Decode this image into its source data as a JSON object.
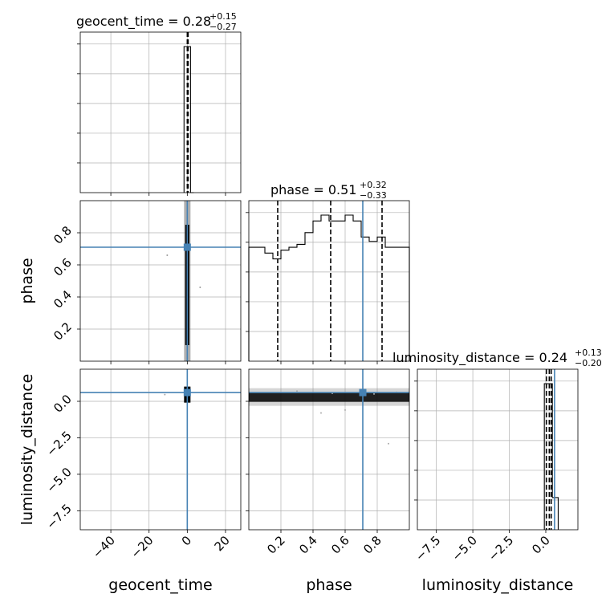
{
  "figure": {
    "titles": {
      "geocent_time": {
        "prefix": "geocent_time = 0.28",
        "sup": "+0.15",
        "sub": "−0.27"
      },
      "phase": {
        "prefix": "phase = 0.51",
        "sup": "+0.32",
        "sub": "−0.33"
      },
      "luminosity_distance": {
        "prefix": "luminosity_distance = 0.24",
        "sup": "+0.13",
        "sub": "−0.20"
      }
    },
    "axis_labels": {
      "geocent_time": "geocent_time",
      "phase": "phase",
      "luminosity_distance": "luminosity_distance"
    }
  },
  "chart_data": {
    "type": "corner",
    "parameters": [
      "geocent_time",
      "phase",
      "luminosity_distance"
    ],
    "ranges": {
      "geocent_time": [
        -56,
        28
      ],
      "phase": [
        0.0,
        1.0
      ],
      "luminosity_distance": [
        -8.8,
        2.2
      ]
    },
    "ticks": {
      "geocent_time": {
        "values": [
          -40,
          -20,
          0,
          20
        ],
        "labels": [
          "−40",
          "−20",
          "0",
          "20"
        ]
      },
      "phase": {
        "values": [
          0.2,
          0.4,
          0.6,
          0.8
        ],
        "labels": [
          "0.2",
          "0.4",
          "0.6",
          "0.8"
        ]
      },
      "luminosity_distance": {
        "values": [
          -7.5,
          -5.0,
          -2.5,
          0.0
        ],
        "labels": [
          "−7.5",
          "−5.0",
          "−2.5",
          "0.0"
        ]
      }
    },
    "truths": {
      "geocent_time": 0.0,
      "phase": 0.71,
      "luminosity_distance": 0.6
    },
    "quantiles": {
      "geocent_time": [
        0.01,
        0.28,
        0.43
      ],
      "phase": [
        0.18,
        0.51,
        0.83
      ],
      "luminosity_distance": [
        0.04,
        0.24,
        0.37
      ]
    },
    "histograms": {
      "geocent_time": {
        "edges": [
          -1.7,
          0.0,
          1.7,
          3.4
        ],
        "counts": [
          1.0,
          1.0,
          0.0
        ]
      },
      "phase": {
        "edges": [
          0.0,
          0.05,
          0.1,
          0.15,
          0.2,
          0.25,
          0.3,
          0.35,
          0.4,
          0.45,
          0.5,
          0.55,
          0.6,
          0.65,
          0.7,
          0.75,
          0.8,
          0.85,
          0.9,
          0.95,
          1.0
        ],
        "counts": [
          0.78,
          0.78,
          0.74,
          0.7,
          0.76,
          0.78,
          0.8,
          0.88,
          0.96,
          1.0,
          0.96,
          0.96,
          1.0,
          0.96,
          0.85,
          0.82,
          0.85,
          0.78,
          0.78,
          0.78
        ]
      },
      "luminosity_distance": {
        "edges": [
          -0.1,
          0.15,
          0.45,
          0.85
        ],
        "counts": [
          1.0,
          1.0,
          0.22
        ]
      }
    }
  }
}
